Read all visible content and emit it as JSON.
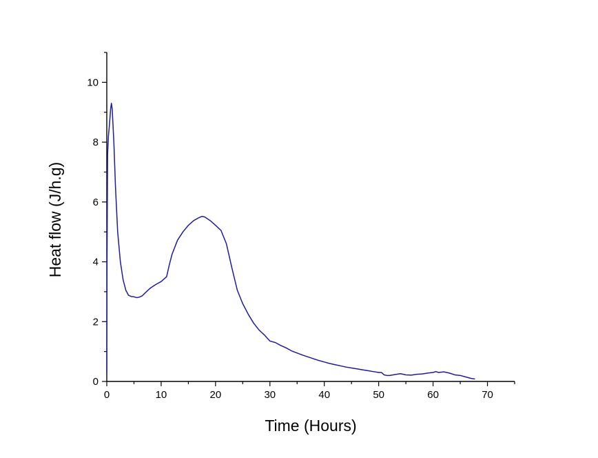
{
  "chart_data": {
    "type": "line",
    "xlabel": "Time (Hours)",
    "ylabel": "Heat flow (J/h.g)",
    "xlim": [
      0,
      75
    ],
    "ylim": [
      0,
      11
    ],
    "x_ticks": [
      0,
      10,
      20,
      30,
      40,
      50,
      60,
      70
    ],
    "y_ticks": [
      0,
      2,
      4,
      6,
      8,
      10
    ],
    "x_tick_labels": [
      "0",
      "10",
      "20",
      "30",
      "40",
      "50",
      "60",
      "70"
    ],
    "y_tick_labels": [
      "0",
      "2",
      "4",
      "6",
      "8",
      "10"
    ],
    "grid": false,
    "legend": "none",
    "series_color": "#1a1aa6",
    "series": [
      {
        "x": [
          0.0,
          0.05,
          0.15,
          0.3,
          0.5,
          0.7,
          0.85,
          1.0,
          1.3,
          1.6,
          2.0,
          2.5,
          3.0,
          3.5,
          4.0,
          4.5,
          5.0,
          5.5,
          6.0,
          6.5,
          7.0,
          8.0,
          9.0,
          10.0,
          11.0,
          11.5,
          12.0,
          13.0,
          14.0,
          15.0,
          16.0,
          17.0,
          17.5,
          18.0,
          19.0,
          20.0,
          21.0,
          22.0,
          23.0,
          24.0,
          25.0,
          26.0,
          27.0,
          28.0,
          29.0,
          30.0,
          31.0,
          32.0,
          33.0,
          34.0,
          35.0,
          36.0,
          37.0,
          38.0,
          39.0,
          40.0,
          41.0,
          42.0,
          43.0,
          44.0,
          45.0,
          46.0,
          47.0,
          48.0,
          49.0,
          50.0,
          50.5,
          51.0,
          51.5,
          52.0,
          53.0,
          54.0,
          55.0,
          56.0,
          57.0,
          58.0,
          59.0,
          60.0,
          60.5,
          61.0,
          62.0,
          63.0,
          64.0,
          65.0,
          66.0,
          67.0,
          67.7
        ],
        "y": [
          0.3,
          4.0,
          7.6,
          8.2,
          8.6,
          9.1,
          9.3,
          9.1,
          8.0,
          6.5,
          5.0,
          4.0,
          3.4,
          3.05,
          2.88,
          2.84,
          2.83,
          2.8,
          2.82,
          2.86,
          2.95,
          3.12,
          3.24,
          3.34,
          3.5,
          3.9,
          4.25,
          4.72,
          5.0,
          5.22,
          5.38,
          5.48,
          5.52,
          5.5,
          5.38,
          5.22,
          5.05,
          4.6,
          3.8,
          3.05,
          2.6,
          2.25,
          1.95,
          1.72,
          1.55,
          1.35,
          1.3,
          1.2,
          1.12,
          1.02,
          0.95,
          0.88,
          0.82,
          0.76,
          0.7,
          0.65,
          0.6,
          0.56,
          0.52,
          0.48,
          0.45,
          0.42,
          0.39,
          0.36,
          0.33,
          0.3,
          0.3,
          0.22,
          0.2,
          0.2,
          0.23,
          0.26,
          0.22,
          0.21,
          0.24,
          0.25,
          0.28,
          0.3,
          0.33,
          0.3,
          0.32,
          0.28,
          0.22,
          0.2,
          0.15,
          0.1,
          0.08
        ]
      }
    ]
  }
}
